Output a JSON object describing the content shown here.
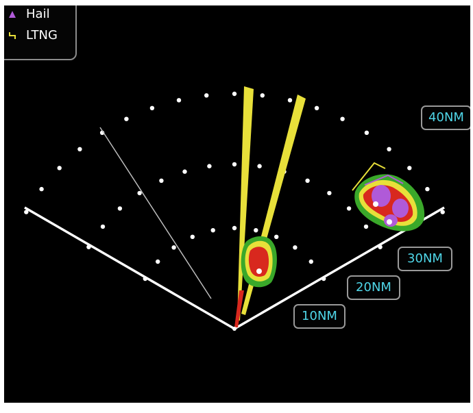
{
  "legend": {
    "items": [
      {
        "label": "Hail",
        "icon": "hail-triangle-icon",
        "color": "#b05ad8"
      },
      {
        "label": "LTNG",
        "icon": "lightning-bracket-icon",
        "color": "#e8e03a"
      }
    ]
  },
  "range_rings": [
    {
      "label": "10NM"
    },
    {
      "label": "20NM"
    },
    {
      "label": "30NM"
    },
    {
      "label": "40NM"
    }
  ],
  "colors": {
    "background": "#000000",
    "scan_edges": "#ffffff",
    "range_dots": "#ffffff",
    "range_label_text": "#4fd6e8",
    "range_label_border": "#9a9a9a",
    "attenuation_spokes": "#e8e03a",
    "weather_green": "#3aa82a",
    "weather_yellow": "#e8e03a",
    "weather_red": "#d8281e",
    "weather_magenta": "#b05ad8"
  }
}
